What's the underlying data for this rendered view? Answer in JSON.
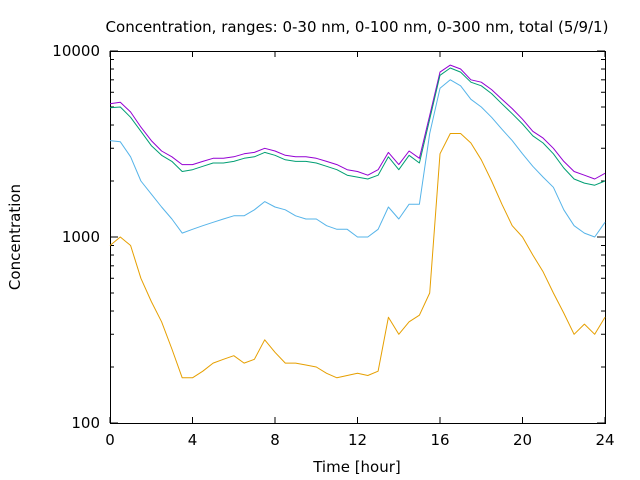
{
  "chart_data": {
    "type": "line",
    "title": "Concentration, ranges: 0-30 nm, 0-100 nm, 0-300 nm, total (5/9/1)",
    "xlabel": "Time [hour]",
    "ylabel": "Concentration",
    "xlim": [
      0,
      24
    ],
    "ylim": [
      100,
      10000
    ],
    "yscale": "log",
    "xticks": [
      "0",
      "4",
      "8",
      "12",
      "16",
      "20",
      "24"
    ],
    "yticks": [
      "100",
      "1000",
      "10000"
    ],
    "grid": false,
    "legend": "none",
    "series": [
      {
        "color": "#9400d3",
        "x": [
          0,
          0.5,
          1,
          1.5,
          2,
          2.5,
          3,
          3.5,
          4,
          4.5,
          5,
          5.5,
          6,
          6.5,
          7,
          7.5,
          8,
          8.5,
          9,
          9.5,
          10,
          10.5,
          11,
          11.5,
          12,
          12.5,
          13,
          13.5,
          14,
          14.5,
          15,
          15.5,
          16,
          16.5,
          17,
          17.5,
          18,
          18.5,
          19,
          19.5,
          20,
          20.5,
          21,
          21.5,
          22,
          22.5,
          23,
          23.5,
          24
        ],
        "y": [
          5200,
          5300,
          4700,
          3900,
          3300,
          2900,
          2700,
          2450,
          2450,
          2550,
          2650,
          2650,
          2700,
          2800,
          2850,
          3000,
          2900,
          2750,
          2700,
          2700,
          2650,
          2550,
          2450,
          2300,
          2250,
          2150,
          2300,
          2850,
          2450,
          2900,
          2650,
          4500,
          7700,
          8400,
          8000,
          7000,
          6800,
          6200,
          5500,
          4900,
          4300,
          3700,
          3400,
          3000,
          2550,
          2250,
          2150,
          2050,
          2200
        ]
      },
      {
        "color": "#009e73",
        "x": [
          0,
          0.5,
          1,
          1.5,
          2,
          2.5,
          3,
          3.5,
          4,
          4.5,
          5,
          5.5,
          6,
          6.5,
          7,
          7.5,
          8,
          8.5,
          9,
          9.5,
          10,
          10.5,
          11,
          11.5,
          12,
          12.5,
          13,
          13.5,
          14,
          14.5,
          15,
          15.5,
          16,
          16.5,
          17,
          17.5,
          18,
          18.5,
          19,
          19.5,
          20,
          20.5,
          21,
          21.5,
          22,
          22.5,
          23,
          23.5,
          24
        ],
        "y": [
          4950,
          5000,
          4400,
          3700,
          3100,
          2750,
          2550,
          2250,
          2300,
          2400,
          2500,
          2500,
          2550,
          2650,
          2700,
          2850,
          2750,
          2600,
          2550,
          2550,
          2500,
          2400,
          2300,
          2150,
          2100,
          2050,
          2150,
          2700,
          2300,
          2750,
          2500,
          4300,
          7400,
          8100,
          7700,
          6800,
          6500,
          5900,
          5200,
          4600,
          4050,
          3500,
          3200,
          2800,
          2350,
          2050,
          1950,
          1900,
          2000
        ]
      },
      {
        "color": "#56b4e9",
        "x": [
          0,
          0.5,
          1,
          1.5,
          2,
          2.5,
          3,
          3.5,
          4,
          4.5,
          5,
          5.5,
          6,
          6.5,
          7,
          7.5,
          8,
          8.5,
          9,
          9.5,
          10,
          10.5,
          11,
          11.5,
          12,
          12.5,
          13,
          13.5,
          14,
          14.5,
          15,
          15.5,
          16,
          16.5,
          17,
          17.5,
          18,
          18.5,
          19,
          19.5,
          20,
          20.5,
          21,
          21.5,
          22,
          22.5,
          23,
          23.5,
          24
        ],
        "y": [
          3300,
          3250,
          2700,
          2000,
          1700,
          1450,
          1250,
          1050,
          1100,
          1150,
          1200,
          1250,
          1300,
          1300,
          1400,
          1550,
          1450,
          1400,
          1300,
          1250,
          1250,
          1150,
          1100,
          1100,
          1000,
          1000,
          1100,
          1450,
          1250,
          1500,
          1500,
          3600,
          6300,
          7000,
          6500,
          5500,
          5000,
          4400,
          3800,
          3300,
          2800,
          2400,
          2100,
          1850,
          1400,
          1150,
          1050,
          1000,
          1200
        ]
      },
      {
        "color": "#e69f00",
        "x": [
          0,
          0.5,
          1,
          1.5,
          2,
          2.5,
          3,
          3.5,
          4,
          4.5,
          5,
          5.5,
          6,
          6.5,
          7,
          7.5,
          8,
          8.5,
          9,
          9.5,
          10,
          10.5,
          11,
          11.5,
          12,
          12.5,
          13,
          13.5,
          14,
          14.5,
          15,
          15.5,
          16,
          16.5,
          17,
          17.5,
          18,
          18.5,
          19,
          19.5,
          20,
          20.5,
          21,
          21.5,
          22,
          22.5,
          23,
          23.5,
          24
        ],
        "y": [
          900,
          1000,
          900,
          600,
          450,
          350,
          250,
          175,
          175,
          190,
          210,
          220,
          230,
          210,
          220,
          280,
          240,
          210,
          210,
          205,
          200,
          185,
          175,
          180,
          185,
          180,
          190,
          370,
          300,
          350,
          380,
          500,
          2800,
          3600,
          3600,
          3200,
          2600,
          2000,
          1500,
          1150,
          1000,
          800,
          650,
          500,
          390,
          300,
          340,
          300,
          370
        ]
      }
    ]
  }
}
